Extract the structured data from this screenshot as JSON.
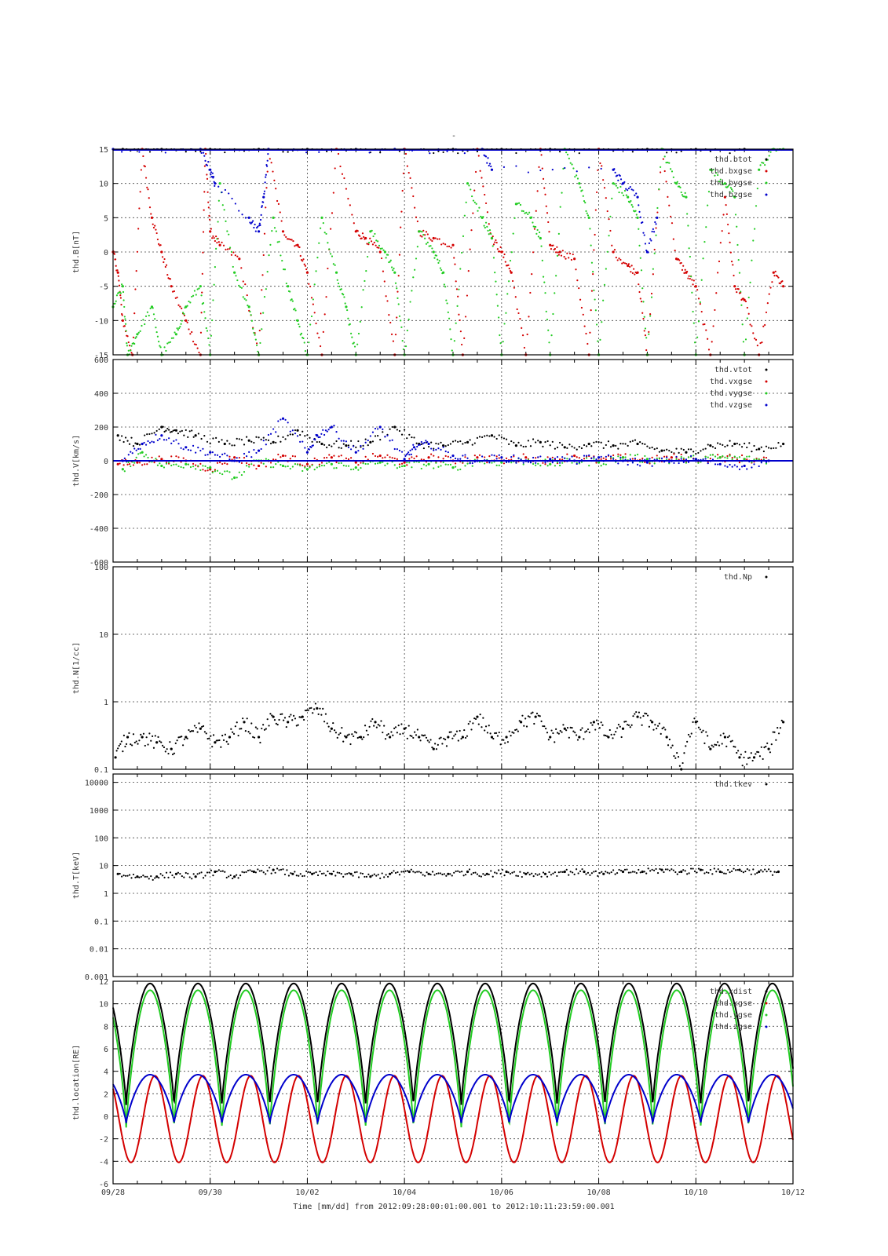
{
  "page_title": "-",
  "x_axis": {
    "label": "Time [mm/dd]  from 2012:09:28:00:01:00.001  to  2012:10:11:23:59:00.001",
    "range": [
      0,
      14
    ],
    "ticks": [
      0,
      2,
      4,
      6,
      8,
      10,
      12,
      14
    ],
    "tick_labels": [
      "09/28",
      "09/30",
      "10/02",
      "10/04",
      "10/06",
      "10/08",
      "10/10",
      "10/12"
    ]
  },
  "colors": {
    "black": "#000000",
    "red": "#d40000",
    "green": "#22cc22",
    "blue": "#0000cc"
  },
  "chart_data": [
    {
      "type": "scatter",
      "ylabel": "thd.B[nT]",
      "ylim": [
        -15,
        15
      ],
      "yticks": [
        -15,
        -10,
        -5,
        0,
        5,
        10,
        15
      ],
      "ytick_labels": [
        "-15",
        "-10",
        "-5",
        "0",
        "5",
        "10",
        "15"
      ],
      "legend_position": "top-right",
      "series": [
        {
          "name": "thd.btot",
          "color": "#000000",
          "x": [
            0.2,
            1.0,
            2.0,
            3.0,
            4.0,
            5.0,
            6.0,
            7.0,
            8.0,
            9.0,
            10.0,
            11.0,
            12.0,
            13.0
          ],
          "y": [
            15,
            15,
            15,
            15,
            15,
            15,
            15,
            15,
            15,
            15,
            15,
            15,
            15,
            15
          ]
        },
        {
          "name": "thd.bxgse",
          "color": "#d40000",
          "x": [
            0.0,
            0.1,
            0.2,
            0.4,
            0.6,
            0.8,
            1.0,
            1.2,
            1.5,
            1.8,
            1.9,
            2.0,
            2.2,
            2.6,
            3.0,
            3.2,
            3.5,
            3.8,
            4.0,
            4.3,
            4.6,
            5.0,
            5.2,
            5.5,
            5.8,
            6.0,
            6.3,
            6.6,
            7.0,
            7.2,
            7.5,
            7.8,
            8.0,
            8.2,
            8.5,
            8.8,
            9.0,
            9.2,
            9.5,
            9.8,
            10.0,
            10.3,
            10.6,
            10.8,
            11.0,
            11.3,
            11.6,
            11.8,
            12.0,
            12.3,
            12.6,
            12.8,
            13.0,
            13.3,
            13.6,
            13.8
          ],
          "y": [
            0,
            -3,
            -10,
            -15,
            15,
            5,
            0,
            -5,
            -10,
            -15,
            15,
            3,
            1,
            -1,
            -15,
            15,
            3,
            1,
            -3,
            -15,
            15,
            3,
            2,
            0,
            -15,
            15,
            3,
            2,
            1,
            -15,
            15,
            2,
            0,
            -3,
            -15,
            15,
            1,
            0,
            -1,
            -15,
            15,
            0,
            -2,
            -3,
            -15,
            15,
            -1,
            -3,
            -5,
            -15,
            8,
            -5,
            -7,
            -15,
            -3,
            -5
          ]
        },
        {
          "name": "thd.bygse",
          "color": "#22cc22",
          "x": [
            0.0,
            0.2,
            0.3,
            0.5,
            0.8,
            1.0,
            1.3,
            1.5,
            1.8,
            2.0,
            2.2,
            2.5,
            2.8,
            3.0,
            3.3,
            3.6,
            3.8,
            4.0,
            4.3,
            4.6,
            4.8,
            5.0,
            5.3,
            5.6,
            5.8,
            6.0,
            6.3,
            6.6,
            6.8,
            7.0,
            7.3,
            7.6,
            7.8,
            8.0,
            8.3,
            8.6,
            8.8,
            9.0,
            9.3,
            9.6,
            9.8,
            10.0,
            10.3,
            10.6,
            10.8,
            11.0,
            11.3,
            11.6,
            11.8,
            12.0,
            12.3,
            12.6,
            12.8,
            13.0,
            13.3,
            13.6,
            13.8
          ],
          "y": [
            -8,
            -5,
            -15,
            -12,
            -8,
            -15,
            -12,
            -8,
            -5,
            -15,
            10,
            -3,
            -8,
            -15,
            5,
            -5,
            -10,
            -15,
            5,
            -3,
            -8,
            -15,
            3,
            0,
            -3,
            -15,
            3,
            0,
            -3,
            -15,
            10,
            5,
            2,
            -15,
            7,
            5,
            2,
            -15,
            15,
            10,
            5,
            -15,
            10,
            8,
            5,
            -15,
            15,
            10,
            8,
            -15,
            12,
            10,
            8,
            -15,
            12,
            15,
            15
          ]
        },
        {
          "name": "thd.bzgse",
          "color": "#0000cc",
          "x": [
            0.0,
            1.8,
            2.0,
            2.1,
            2.8,
            3.0,
            3.1,
            3.2,
            5.8,
            7.6,
            7.8,
            10.3,
            10.5,
            10.8,
            11.0,
            11.2
          ],
          "y": [
            15,
            15,
            12,
            10,
            5,
            3,
            8,
            15,
            15,
            15,
            12,
            12,
            10,
            8,
            0,
            5
          ]
        }
      ]
    },
    {
      "type": "scatter",
      "ylabel": "thd.V[km/s]",
      "ylim": [
        -600,
        600
      ],
      "yticks": [
        -600,
        -400,
        -200,
        0,
        200,
        400,
        600
      ],
      "ytick_labels": [
        "-600",
        "-400",
        "-200",
        "0",
        "200",
        "400",
        "600"
      ],
      "legend_position": "top-right",
      "series": [
        {
          "name": "thd.vtot",
          "color": "#000000",
          "x": [
            0.1,
            0.5,
            1.0,
            1.3,
            1.7,
            2.3,
            2.8,
            3.3,
            3.8,
            4.3,
            4.8,
            5.3,
            5.8,
            6.3,
            6.8,
            7.3,
            7.8,
            8.3,
            8.8,
            9.3,
            9.8,
            10.3,
            10.8,
            11.3,
            11.8,
            12.3,
            12.8,
            13.3,
            13.8
          ],
          "y": [
            150,
            100,
            200,
            180,
            150,
            100,
            120,
            110,
            180,
            100,
            90,
            110,
            200,
            100,
            90,
            110,
            150,
            90,
            110,
            80,
            100,
            90,
            100,
            60,
            50,
            90,
            100,
            70,
            100
          ]
        },
        {
          "name": "thd.vxgse",
          "color": "#d40000",
          "x": [
            0.1,
            0.5,
            1.0,
            1.5,
            2.0,
            2.5,
            3.0,
            3.5,
            4.0,
            4.5,
            5.0,
            5.5,
            6.0,
            6.5,
            7.0,
            7.5,
            8.0,
            8.5,
            9.0,
            9.5,
            10.0,
            10.5,
            11.0,
            11.5,
            12.0,
            12.5,
            13.0,
            13.5
          ],
          "y": [
            -20,
            -10,
            10,
            0,
            -50,
            20,
            -30,
            30,
            -20,
            20,
            -10,
            30,
            -10,
            20,
            0,
            20,
            0,
            20,
            0,
            30,
            0,
            20,
            0,
            20,
            10,
            20,
            10,
            0
          ]
        },
        {
          "name": "thd.vygse",
          "color": "#22cc22",
          "x": [
            0.2,
            0.6,
            1.0,
            1.5,
            2.0,
            2.5,
            3.0,
            3.5,
            4.0,
            4.5,
            5.0,
            5.5,
            6.0,
            6.5,
            7.0,
            7.5,
            8.0,
            8.5,
            9.0,
            9.5,
            10.0,
            10.5,
            11.0,
            11.5,
            12.0,
            12.5,
            13.0,
            13.5
          ],
          "y": [
            -50,
            50,
            -30,
            -20,
            -40,
            -100,
            0,
            -30,
            -50,
            -20,
            -40,
            -10,
            -30,
            -20,
            -40,
            0,
            -10,
            0,
            -20,
            0,
            -10,
            20,
            10,
            0,
            10,
            20,
            10,
            0
          ]
        },
        {
          "name": "thd.vzgse",
          "color": "#0000cc",
          "x": [
            0.2,
            0.6,
            1.0,
            1.5,
            2.0,
            2.5,
            3.0,
            3.5,
            4.0,
            4.2,
            4.5,
            5.0,
            5.5,
            6.0,
            6.2,
            6.5,
            7.0,
            7.5,
            8.0,
            8.5,
            9.0,
            9.5,
            10.0,
            10.5,
            11.0,
            11.5,
            12.0,
            12.5,
            13.0,
            13.5
          ],
          "y": [
            0,
            100,
            150,
            80,
            50,
            0,
            60,
            250,
            50,
            150,
            200,
            50,
            200,
            10,
            80,
            100,
            30,
            0,
            20,
            0,
            10,
            0,
            20,
            0,
            -10,
            0,
            10,
            -20,
            -30,
            0
          ]
        }
      ]
    },
    {
      "type": "scatter",
      "ylabel": "thd.N[1/cc]",
      "yscale": "log",
      "ylim": [
        0.1,
        100
      ],
      "yticks": [
        0.1,
        1,
        10,
        100
      ],
      "ytick_labels": [
        "0.1",
        "1",
        "10",
        "100"
      ],
      "legend_position": "top-right",
      "series": [
        {
          "name": "thd.Np",
          "color": "#000000",
          "x": [
            0.05,
            0.3,
            0.6,
            0.9,
            1.2,
            1.5,
            1.8,
            2.1,
            2.4,
            2.7,
            3.0,
            3.3,
            3.6,
            3.9,
            4.2,
            4.5,
            4.8,
            5.1,
            5.4,
            5.7,
            6.0,
            6.3,
            6.6,
            6.9,
            7.2,
            7.5,
            7.8,
            8.1,
            8.4,
            8.7,
            9.0,
            9.3,
            9.6,
            9.9,
            10.2,
            10.5,
            10.8,
            11.1,
            11.4,
            11.7,
            12.0,
            12.3,
            12.6,
            12.9,
            13.2,
            13.5,
            13.8
          ],
          "y": [
            0.15,
            0.3,
            0.3,
            0.25,
            0.2,
            0.3,
            0.4,
            0.25,
            0.3,
            0.5,
            0.3,
            0.6,
            0.5,
            0.6,
            0.8,
            0.4,
            0.3,
            0.3,
            0.5,
            0.3,
            0.4,
            0.3,
            0.2,
            0.3,
            0.3,
            0.6,
            0.3,
            0.3,
            0.5,
            0.6,
            0.3,
            0.4,
            0.3,
            0.5,
            0.3,
            0.4,
            0.6,
            0.5,
            0.3,
            0.1,
            0.5,
            0.2,
            0.3,
            0.15,
            0.15,
            0.2,
            0.5
          ]
        }
      ]
    },
    {
      "type": "scatter",
      "ylabel": "thd.T[keV]",
      "yscale": "log",
      "ylim": [
        0.001,
        20000
      ],
      "yticks": [
        0.001,
        0.01,
        0.1,
        1,
        10,
        100,
        1000,
        10000
      ],
      "ytick_labels": [
        "0.001",
        "0.01",
        "0.1",
        "1",
        "10",
        "100",
        "1000",
        "10000"
      ],
      "legend_position": "top-right",
      "series": [
        {
          "name": "thd.tkev",
          "color": "#000000",
          "x": [
            0.1,
            0.5,
            0.9,
            1.3,
            1.7,
            2.1,
            2.5,
            2.9,
            3.3,
            3.7,
            4.1,
            4.5,
            4.9,
            5.3,
            5.7,
            6.1,
            6.5,
            6.9,
            7.3,
            7.7,
            8.1,
            8.5,
            8.9,
            9.3,
            9.7,
            10.1,
            10.5,
            10.9,
            11.3,
            11.7,
            12.1,
            12.5,
            12.9,
            13.3,
            13.7
          ],
          "y": [
            5,
            4,
            4,
            5,
            4,
            6,
            4,
            6,
            7,
            5,
            5,
            5,
            5,
            4,
            5,
            6,
            5,
            5,
            6,
            5,
            6,
            5,
            5,
            6,
            6,
            5,
            6,
            6,
            7,
            6,
            7,
            6,
            7,
            6,
            6
          ]
        }
      ]
    },
    {
      "type": "line",
      "ylabel": "thd.location[RE]",
      "ylim": [
        -6,
        12
      ],
      "yticks": [
        -6,
        -4,
        -2,
        0,
        2,
        4,
        6,
        8,
        10,
        12
      ],
      "ytick_labels": [
        "-6",
        "-4",
        "-2",
        "0",
        "2",
        "4",
        "6",
        "8",
        "10",
        "12"
      ],
      "legend_position": "top-right",
      "orbit_period_days": 0.9857,
      "first_perigee_day": 0.27,
      "series": [
        {
          "name": "thd.xdist",
          "color": "#000000",
          "perigee": 1.0,
          "apogee": 11.8
        },
        {
          "name": "thd.xgse",
          "color": "#d40000",
          "x_min": -4.1,
          "x_max": 3.6
        },
        {
          "name": "thd.ygse",
          "color": "#22cc22",
          "perigee": -1.0,
          "apogee": 11.2
        },
        {
          "name": "thd.zgse",
          "color": "#0000cc",
          "perigee": -0.6,
          "apogee": 3.7
        }
      ]
    }
  ]
}
